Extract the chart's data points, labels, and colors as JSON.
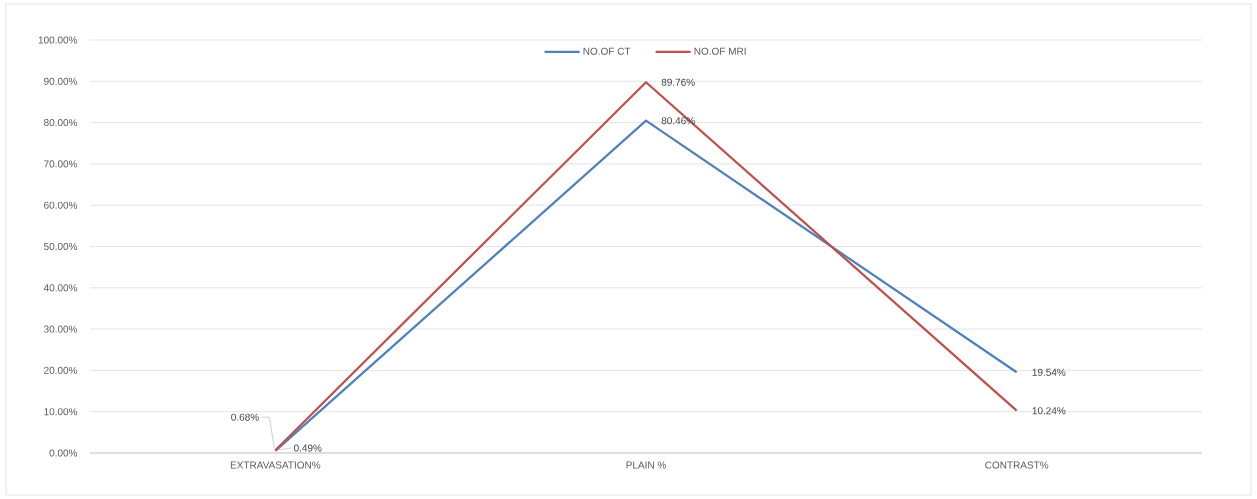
{
  "chart_data": {
    "type": "line",
    "categories": [
      "EXTRAVASATION%",
      "PLAIN %",
      "CONTRAST%"
    ],
    "series": [
      {
        "name": "NO.OF CT",
        "color": "#4f81bd",
        "values": [
          0.49,
          80.46,
          19.54
        ],
        "value_labels": [
          "0.49%",
          "80.46%",
          "19.54%"
        ]
      },
      {
        "name": "NO.OF MRI",
        "color": "#c0504d",
        "values": [
          0.68,
          89.76,
          10.24
        ],
        "value_labels": [
          "0.68%",
          "89.76%",
          "10.24%"
        ]
      }
    ],
    "ylim": [
      0,
      100
    ],
    "yticks": [
      {
        "value": 0,
        "label": "0.00%"
      },
      {
        "value": 10,
        "label": "10.00%"
      },
      {
        "value": 20,
        "label": "20.00%"
      },
      {
        "value": 30,
        "label": "30.00%"
      },
      {
        "value": 40,
        "label": "40.00%"
      },
      {
        "value": 50,
        "label": "50.00%"
      },
      {
        "value": 60,
        "label": "60.00%"
      },
      {
        "value": 70,
        "label": "70.00%"
      },
      {
        "value": 80,
        "label": "80.00%"
      },
      {
        "value": 90,
        "label": "90.00%"
      },
      {
        "value": 100,
        "label": "100.00%"
      }
    ],
    "grid": "y",
    "legend": "top",
    "marker": "none"
  }
}
